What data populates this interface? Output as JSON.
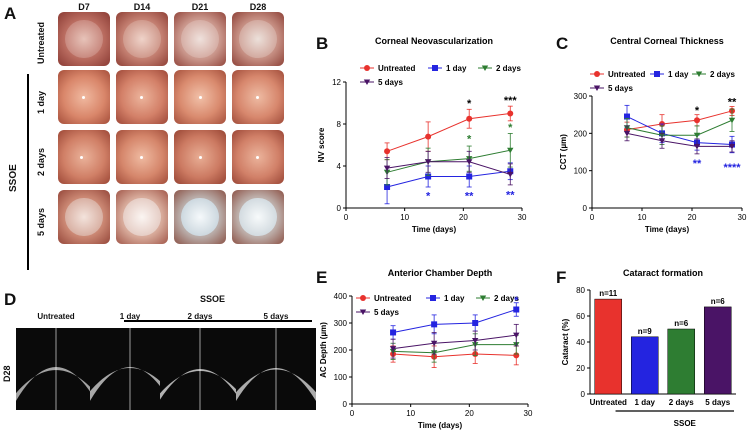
{
  "panels": {
    "A": "A",
    "B": "B",
    "C": "C",
    "D": "D",
    "E": "E",
    "F": "F"
  },
  "photo_grid": {
    "columns": [
      "D7",
      "D14",
      "D21",
      "D28"
    ],
    "rows": [
      "Untreated",
      "1 day",
      "2 days",
      "5 days"
    ],
    "group_label": "SSOE"
  },
  "oct": {
    "row_label": "D28",
    "group_label": "SSOE",
    "columns": [
      "Untreated",
      "1 day",
      "2 days",
      "5 days"
    ]
  },
  "colors": {
    "untreated": "#e8322d",
    "one_day": "#2424e0",
    "two_days": "#2e7d32",
    "five_days": "#4a1466"
  },
  "chart_data": [
    {
      "id": "B",
      "type": "line",
      "title": "Corneal Neovascularization",
      "xlabel": "Time (days)",
      "ylabel": "NV score",
      "xlim": [
        0,
        30
      ],
      "ylim": [
        0,
        12
      ],
      "xticks": [
        0,
        10,
        20,
        30
      ],
      "yticks": [
        0,
        4,
        8,
        12
      ],
      "x": [
        7,
        14,
        21,
        28
      ],
      "series": [
        {
          "name": "Untreated",
          "values": [
            5.4,
            6.8,
            8.5,
            9.0
          ],
          "err": [
            0.8,
            1.4,
            0.9,
            0.7
          ]
        },
        {
          "name": "1 day",
          "values": [
            2.0,
            3.0,
            3.0,
            3.5
          ],
          "err": [
            1.6,
            1.0,
            1.0,
            0.8
          ]
        },
        {
          "name": "2 days",
          "values": [
            3.4,
            4.4,
            4.7,
            5.5
          ],
          "err": [
            1.2,
            1.3,
            1.2,
            1.6
          ]
        },
        {
          "name": "5 days",
          "values": [
            3.8,
            4.4,
            4.4,
            3.2
          ],
          "err": [
            1.0,
            1.0,
            1.0,
            1.0
          ]
        }
      ],
      "annotations": [
        {
          "x": 14,
          "y": 1.2,
          "text": "*",
          "series": "1 day"
        },
        {
          "x": 21,
          "y": 10.0,
          "text": "*",
          "series": "Untreated"
        },
        {
          "x": 21,
          "y": 6.6,
          "text": "*",
          "series": "2 days"
        },
        {
          "x": 21,
          "y": 1.2,
          "text": "**",
          "series": "1 day"
        },
        {
          "x": 28,
          "y": 10.3,
          "text": "***",
          "series": "Untreated"
        },
        {
          "x": 28,
          "y": 7.7,
          "text": "*",
          "series": "2 days"
        },
        {
          "x": 28,
          "y": 1.3,
          "text": "**",
          "series": "1 day"
        }
      ]
    },
    {
      "id": "C",
      "type": "line",
      "title": "Central Corneal Thickness",
      "xlabel": "Time (days)",
      "ylabel": "CCT (µm)",
      "xlim": [
        0,
        30
      ],
      "ylim": [
        0,
        300
      ],
      "xticks": [
        0,
        10,
        20,
        30
      ],
      "yticks": [
        0,
        100,
        200,
        300
      ],
      "x": [
        7,
        14,
        21,
        28
      ],
      "series": [
        {
          "name": "Untreated",
          "values": [
            210,
            225,
            235,
            260
          ],
          "err": [
            20,
            25,
            15,
            12
          ]
        },
        {
          "name": "1 day",
          "values": [
            245,
            200,
            175,
            170
          ],
          "err": [
            30,
            25,
            20,
            22
          ]
        },
        {
          "name": "2 days",
          "values": [
            215,
            195,
            195,
            235
          ],
          "err": [
            25,
            25,
            25,
            30
          ]
        },
        {
          "name": "5 days",
          "values": [
            200,
            180,
            165,
            165
          ],
          "err": [
            20,
            20,
            20,
            15
          ]
        }
      ],
      "annotations": [
        {
          "x": 21,
          "y": 262,
          "text": "*",
          "series": "Untreated"
        },
        {
          "x": 21,
          "y": 120,
          "text": "**",
          "series": "1 day"
        },
        {
          "x": 28,
          "y": 285,
          "text": "**",
          "series": "Untreated"
        },
        {
          "x": 28,
          "y": 110,
          "text": "****",
          "series": "1 day"
        }
      ]
    },
    {
      "id": "E",
      "type": "line",
      "title": "Anterior Chamber Depth",
      "xlabel": "Time (days)",
      "ylabel": "AC Depth (µm)",
      "xlim": [
        0,
        30
      ],
      "ylim": [
        0,
        400
      ],
      "xticks": [
        0,
        10,
        20,
        30
      ],
      "yticks": [
        0,
        100,
        200,
        300,
        400
      ],
      "x": [
        7,
        14,
        21,
        28
      ],
      "series": [
        {
          "name": "Untreated",
          "values": [
            185,
            175,
            185,
            180
          ],
          "err": [
            30,
            40,
            35,
            35
          ]
        },
        {
          "name": "1 day",
          "values": [
            265,
            295,
            300,
            350
          ],
          "err": [
            25,
            35,
            30,
            25
          ]
        },
        {
          "name": "2 days",
          "values": [
            195,
            190,
            220,
            220
          ],
          "err": [
            30,
            35,
            40,
            35
          ]
        },
        {
          "name": "5 days",
          "values": [
            205,
            225,
            235,
            255
          ],
          "err": [
            35,
            40,
            35,
            40
          ]
        }
      ],
      "annotations": [
        {
          "x": 28,
          "y": 385,
          "text": "*",
          "series": "1 day"
        }
      ]
    },
    {
      "id": "F",
      "type": "bar",
      "title": "Cataract formation",
      "xlabel": "",
      "ylabel": "Cataract (%)",
      "group_label": "SSOE",
      "ylim": [
        0,
        80
      ],
      "yticks": [
        0,
        20,
        40,
        60,
        80
      ],
      "categories": [
        "Untreated",
        "1 day",
        "2 days",
        "5 days"
      ],
      "values": [
        73,
        44,
        50,
        67
      ],
      "labels": [
        "n=11",
        "n=9",
        "n=6",
        "n=6"
      ]
    }
  ]
}
